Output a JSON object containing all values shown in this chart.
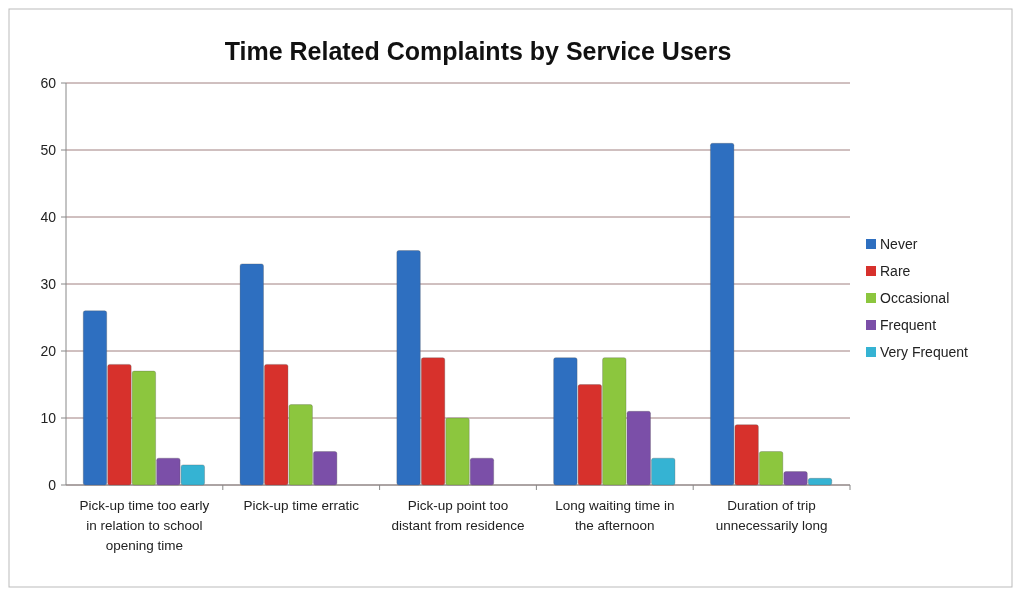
{
  "chart_data": {
    "type": "bar",
    "title": "Time Related Complaints by Service Users",
    "categories": [
      "Pick-up time too early in relation to school opening time",
      "Pick-up time erratic",
      "Pick-up point too distant from residence",
      "Long waiting time in the afternoon",
      "Duration of trip unnecessarily long"
    ],
    "series": [
      {
        "name": "Never",
        "color": "#2e6fc0",
        "values": [
          26,
          33,
          35,
          19,
          51
        ]
      },
      {
        "name": "Rare",
        "color": "#d7312c",
        "values": [
          18,
          18,
          19,
          15,
          9
        ]
      },
      {
        "name": "Occasional",
        "color": "#8cc63e",
        "values": [
          17,
          12,
          10,
          19,
          5
        ]
      },
      {
        "name": "Frequent",
        "color": "#7b4fa8",
        "values": [
          4,
          5,
          4,
          11,
          2
        ]
      },
      {
        "name": "Very Frequent",
        "color": "#35b3d3",
        "values": [
          3,
          0,
          0,
          4,
          1
        ]
      }
    ],
    "ylim": [
      0,
      60
    ],
    "yticks": [
      0,
      10,
      20,
      30,
      40,
      50,
      60
    ],
    "grid": "y",
    "legend": "right"
  }
}
